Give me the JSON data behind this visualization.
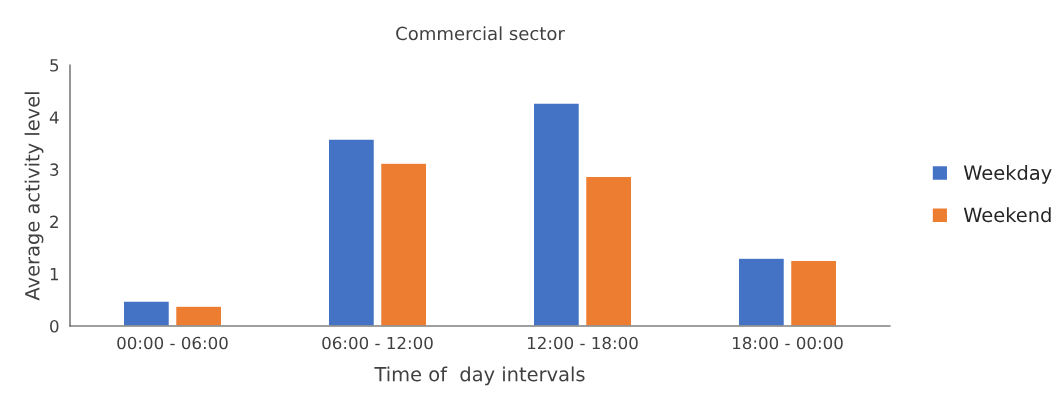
{
  "chart_data": {
    "type": "bar",
    "title": "Commercial sector",
    "xlabel": "Time of  day intervals",
    "ylabel": "Average activity level",
    "categories": [
      "00:00 - 06:00",
      "06:00 - 12:00",
      "12:00 - 18:00",
      "18:00 - 00:00"
    ],
    "series": [
      {
        "name": "Weekday",
        "color": "#4472c4",
        "values": [
          0.48,
          3.58,
          4.27,
          1.3
        ]
      },
      {
        "name": "Weekend",
        "color": "#ed7d31",
        "values": [
          0.38,
          3.12,
          2.87,
          1.26
        ]
      }
    ],
    "ylim": [
      0,
      5
    ],
    "yticks": [
      0,
      1,
      2,
      3,
      4,
      5
    ],
    "grid": false,
    "legend": "right"
  }
}
